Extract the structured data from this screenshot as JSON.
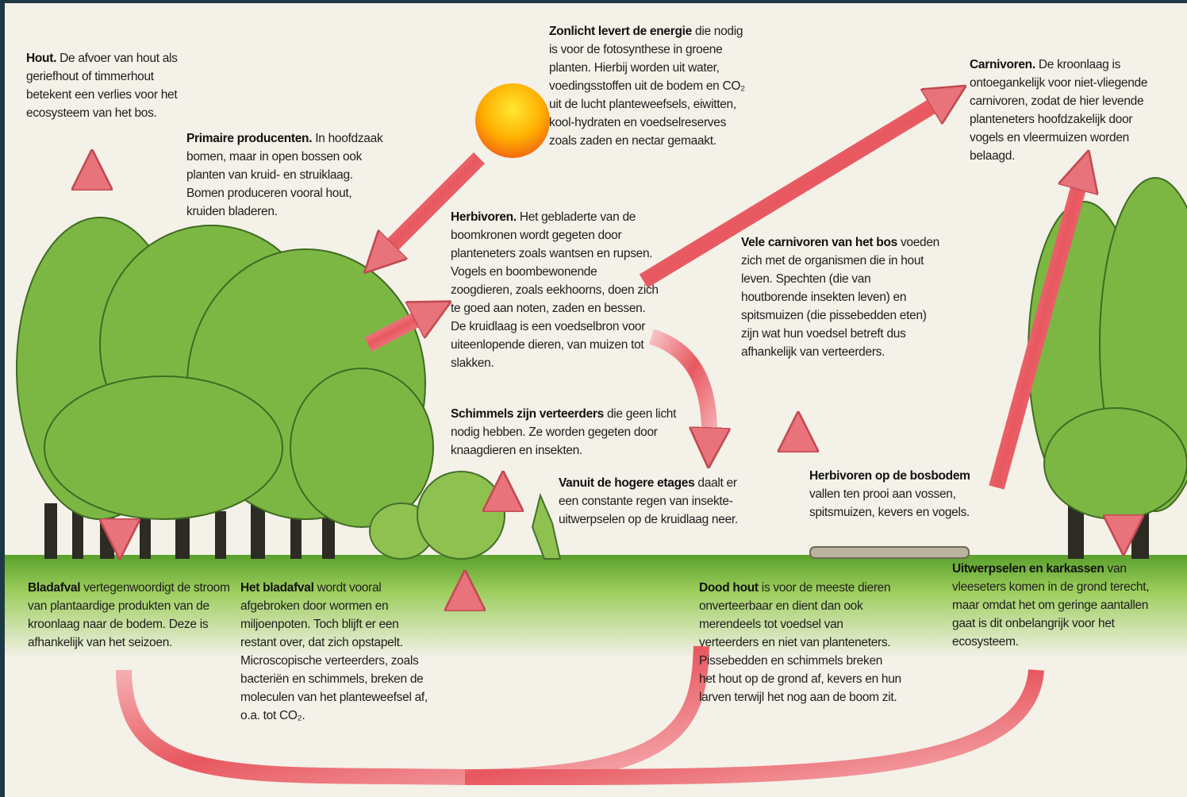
{
  "blocks": [
    {
      "title": "Hout.",
      "text": "De afvoer van hout als geriefhout of timmerhout betekent een verlies voor het ecosysteem van het bos."
    },
    {
      "title": "Primaire producenten.",
      "text": "In hoofdzaak bomen, maar in open bossen ook planten van kruid- en struiklaag. Bomen produceren vooral hout, kruiden bladeren."
    },
    {
      "title": "Zonlicht levert de energie",
      "text": "die nodig is voor de fotosynthese in groene planten. Hierbij worden uit water, voedingsstoffen uit de bodem en CO₂ uit de lucht planteweefsels, eiwitten, kool-hydraten en voedselreserves zoals zaden en nectar gemaakt."
    },
    {
      "title": "Carnivoren.",
      "text": "De kroonlaag is ontoegankelijk voor niet-vliegende carnivoren, zodat de hier levende planteneters hoofdzakelijk door vogels en vleermuizen worden belaagd."
    },
    {
      "title": "Herbivoren.",
      "text": "Het gebladerte van de boomkronen wordt gegeten door planteneters zoals wantsen en rupsen. Vogels en boombewonende zoogdieren, zoals eekhoorns, doen zich te goed aan noten, zaden en bessen. De kruidlaag is een voedselbron voor uiteenlopende dieren, van muizen tot slakken."
    },
    {
      "title": "Vele carnivoren van het bos",
      "text": "voeden zich met de organismen die in hout leven. Spechten (die van houtborende insekten leven) en spitsmuizen (die pissebedden eten) zijn wat hun voedsel betreft dus afhankelijk van verteerders."
    },
    {
      "title": "Schimmels zijn verteerders",
      "text": "die geen licht nodig hebben. Ze worden gegeten door knaagdieren en insekten."
    },
    {
      "title": "Vanuit de hogere etages",
      "text": "daalt er een constante regen van insekte-uitwerpselen op de kruidlaag neer."
    },
    {
      "title": "Herbivoren op de bosbodem",
      "text": "vallen ten prooi aan vossen, spitsmuizen, kevers en vogels."
    },
    {
      "title": "Bladafval",
      "text": "vertegenwoordigt de stroom van plantaardige produkten van de kroonlaag naar de bodem. Deze is afhankelijk van het seizoen."
    },
    {
      "title": "Het bladafval",
      "text": "wordt vooral afgebroken door wormen en miljoenpoten. Toch blijft er een restant over, dat zich opstapelt. Microscopische verteerders, zoals bacteriën en schimmels, breken de moleculen van het planteweefsel af, o.a. tot CO₂."
    },
    {
      "title": "Dood hout",
      "text": "is voor de meeste dieren onverteerbaar en dient dan ook merendeels tot voedsel van verteerders en niet van planteneters. Pissebedden en schimmels breken het hout op de grond af, kevers en hun larven terwijl het nog aan de boom zit."
    },
    {
      "title": "Uitwerpselen en karkassen",
      "text": "van vleeseters komen in de grond terecht, maar omdat het om geringe aantallen gaat is dit onbelangrijk voor het ecosysteem."
    }
  ]
}
